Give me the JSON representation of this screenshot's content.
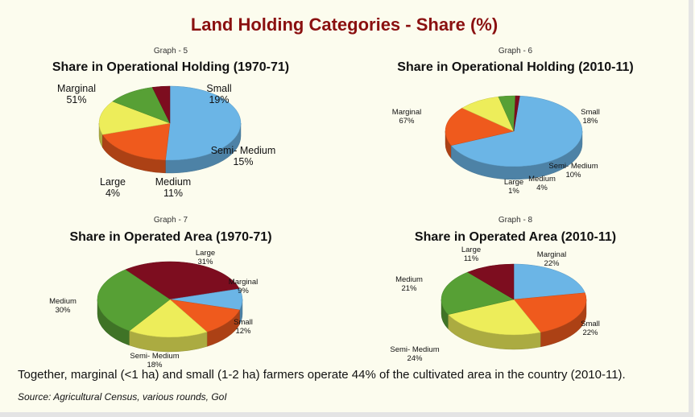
{
  "title": "Land Holding Categories - Share (%)",
  "colors": {
    "Marginal": "#6bb5e6",
    "Small": "#ef5a1d",
    "Semi- Medium": "#eded5a",
    "Medium": "#57a035",
    "Large": "#7d0d1f"
  },
  "chart_data": [
    {
      "type": "pie",
      "graph_label": "Graph - 5",
      "title": "Share in Operational Holding (1970-71)",
      "categories": [
        "Marginal",
        "Small",
        "Semi- Medium",
        "Medium",
        "Large"
      ],
      "values": [
        51,
        19,
        15,
        11,
        4
      ],
      "labels": [
        "Marginal\n51%",
        "Small\n19%",
        "Semi- Medium\n15%",
        "Medium\n11%",
        "Large\n4%"
      ]
    },
    {
      "type": "pie",
      "graph_label": "Graph - 6",
      "title": "Share in Operational Holding (2010-11)",
      "categories": [
        "Marginal",
        "Small",
        "Semi- Medium",
        "Medium",
        "Large"
      ],
      "values": [
        67,
        18,
        10,
        4,
        1
      ],
      "labels": [
        "Marginal\n67%",
        "Small\n18%",
        "Semi- Medium\n10%",
        "Medium\n4%",
        "Large\n1%"
      ]
    },
    {
      "type": "pie",
      "graph_label": "Graph - 7",
      "title": "Share in Operated Area (1970-71)",
      "categories": [
        "Large",
        "Marginal",
        "Small",
        "Semi- Medium",
        "Medium"
      ],
      "values": [
        31,
        9,
        12,
        18,
        30
      ],
      "labels": [
        "Large\n31%",
        "Marginal\n9%",
        "Small\n12%",
        "Semi- Medium\n18%",
        "Medium\n30%"
      ]
    },
    {
      "type": "pie",
      "graph_label": "Graph - 8",
      "title": "Share in Operated Area (2010-11)",
      "categories": [
        "Marginal",
        "Small",
        "Semi- Medium",
        "Medium",
        "Large"
      ],
      "values": [
        22,
        22,
        24,
        21,
        11
      ],
      "labels": [
        "Marginal\n22%",
        "Small\n22%",
        "Semi- Medium\n24%",
        "Medium\n21%",
        "Large\n11%"
      ]
    }
  ],
  "footer": "Together, marginal (<1 ha) and small (1-2 ha) farmers operate 44% of  the cultivated area in the country (2010-11).",
  "source": "Source: Agricultural Census, various rounds, GoI"
}
